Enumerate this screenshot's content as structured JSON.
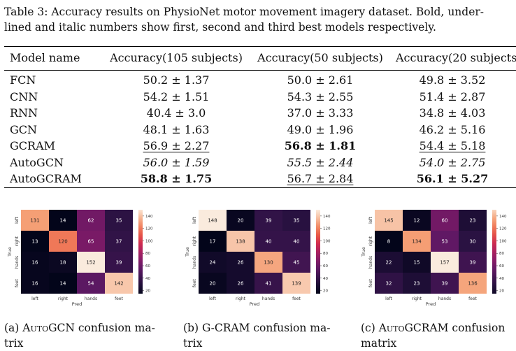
{
  "caption": {
    "line1": "Table 3: Accuracy results on PhysioNet motor movement imagery dataset. Bold, under-",
    "line2": "lined and italic numbers show first, second and third best models respectively."
  },
  "table": {
    "headers": [
      "Model name",
      "Accuracy(105 subjects)",
      "Accuracy(50 subjects)",
      "Accuracy(20 subjects"
    ],
    "rows": [
      {
        "model": "FCN",
        "cells": [
          {
            "text": "50.2 ± 1.37",
            "style": ""
          },
          {
            "text": "50.0 ± 2.61",
            "style": ""
          },
          {
            "text": "49.8 ± 3.52",
            "style": ""
          }
        ]
      },
      {
        "model": "CNN",
        "cells": [
          {
            "text": "54.2 ± 1.51",
            "style": ""
          },
          {
            "text": "54.3 ± 2.55",
            "style": ""
          },
          {
            "text": "51.4 ± 2.87",
            "style": ""
          }
        ]
      },
      {
        "model": "RNN",
        "cells": [
          {
            "text": "40.4 ± 3.0",
            "style": ""
          },
          {
            "text": "37.0 ± 3.33",
            "style": ""
          },
          {
            "text": "34.8 ± 4.03",
            "style": ""
          }
        ]
      },
      {
        "model": "GCN",
        "cells": [
          {
            "text": "48.1 ± 1.63",
            "style": ""
          },
          {
            "text": "49.0 ± 1.96",
            "style": ""
          },
          {
            "text": "46.2 ± 5.16",
            "style": ""
          }
        ]
      },
      {
        "model": "GCRAM",
        "cells": [
          {
            "text": "56.9 ± 2.27",
            "style": "u"
          },
          {
            "text": "56.8 ± 1.81",
            "style": "b"
          },
          {
            "text": "54.4 ± 5.18",
            "style": "u"
          }
        ]
      },
      {
        "model": "AutoGCN",
        "cells": [
          {
            "text": "56.0 ± 1.59",
            "style": "i"
          },
          {
            "text": "55.5 ± 2.44",
            "style": "i"
          },
          {
            "text": "54.0 ± 2.75",
            "style": "i"
          }
        ]
      },
      {
        "model": "AutoGCRAM",
        "cells": [
          {
            "text": "58.8 ± 1.75",
            "style": "b"
          },
          {
            "text": "56.7 ± 2.84",
            "style": "u"
          },
          {
            "text": "56.1 ± 5.27",
            "style": "b"
          }
        ]
      }
    ]
  },
  "confusion_matrices": [
    {
      "labels": [
        "left",
        "right",
        "hands",
        "feet"
      ],
      "xlabel": "Pred",
      "ylabel": "True",
      "values": [
        [
          131,
          14,
          62,
          35
        ],
        [
          13,
          120,
          65,
          37
        ],
        [
          16,
          18,
          152,
          39
        ],
        [
          16,
          14,
          54,
          142
        ]
      ],
      "vmin": 14,
      "vmax": 152,
      "colorbar_ticks": [
        20,
        40,
        60,
        80,
        100,
        120,
        140
      ],
      "caption_prefix": "(a) ",
      "caption_sc": "AutoGCN",
      "caption_rest": " confusion ma-",
      "caption_line2": "trix"
    },
    {
      "labels": [
        "left",
        "right",
        "hands",
        "feet"
      ],
      "xlabel": "Pred",
      "ylabel": "True",
      "values": [
        [
          148,
          20,
          39,
          35
        ],
        [
          17,
          138,
          40,
          40
        ],
        [
          24,
          26,
          130,
          45
        ],
        [
          20,
          26,
          41,
          139
        ]
      ],
      "vmin": 17,
      "vmax": 148,
      "colorbar_ticks": [
        20,
        40,
        60,
        80,
        100,
        120,
        140
      ],
      "caption_prefix": "(b) ",
      "caption_sc": "",
      "caption_rest": "G-CRAM confusion ma-",
      "caption_line2": "trix"
    },
    {
      "labels": [
        "left",
        "right",
        "hands",
        "feet"
      ],
      "xlabel": "Pred",
      "ylabel": "True",
      "values": [
        [
          145,
          12,
          60,
          23
        ],
        [
          8,
          134,
          53,
          30
        ],
        [
          22,
          15,
          157,
          39
        ],
        [
          32,
          23,
          39,
          136
        ]
      ],
      "vmin": 8,
      "vmax": 157,
      "colorbar_ticks": [
        20,
        40,
        60,
        80,
        100,
        120,
        140
      ],
      "caption_prefix": "(c) ",
      "caption_sc": "AutoGCRAM",
      "caption_rest": " confusion",
      "caption_line2": "matrix"
    }
  ]
}
